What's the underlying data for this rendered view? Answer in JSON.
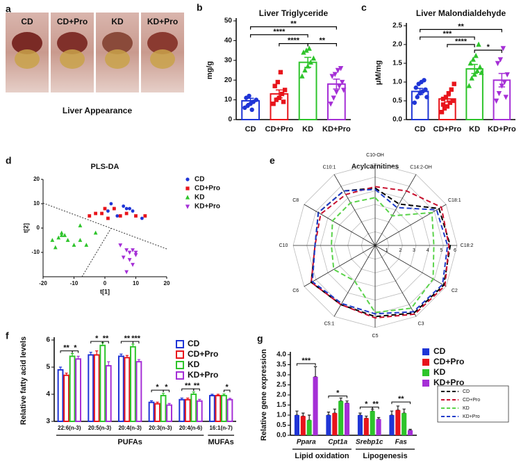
{
  "figure": {
    "panel_labels": [
      "a",
      "b",
      "c",
      "d",
      "e",
      "f",
      "g"
    ],
    "photo_labels": [
      "CD",
      "CD+Pro",
      "KD",
      "KD+Pro"
    ],
    "photo_caption": "Liver Appearance"
  },
  "chart_data": [
    {
      "type": "dot_bar",
      "title": "Liver Triglyceride",
      "y_label": "mg/g",
      "categories": [
        "CD",
        "CD+Pro",
        "KD",
        "KD+Pro"
      ],
      "colors": [
        "#1f35d6",
        "#e8141b",
        "#2ec42b",
        "#a52fd6"
      ],
      "markers": [
        "circle",
        "square",
        "triangle",
        "triangle-down"
      ],
      "values": [
        9.5,
        13,
        29,
        18
      ],
      "errors": [
        1.3,
        2,
        2.5,
        2.5
      ],
      "points": [
        [
          6,
          7,
          8,
          9,
          10,
          11,
          12,
          5
        ],
        [
          8,
          10,
          11,
          13,
          15,
          17,
          19,
          24,
          9
        ],
        [
          22,
          25,
          27,
          29,
          31,
          34,
          35,
          36
        ],
        [
          8,
          11,
          14,
          17,
          19,
          22,
          23,
          25,
          26,
          15
        ]
      ],
      "ylim": [
        0,
        50
      ],
      "yticks": [
        0,
        10,
        20,
        30,
        40,
        50
      ],
      "brackets": [
        {
          "text": "**",
          "from": "CD",
          "to": "KD+Pro",
          "y": 47
        },
        {
          "text": "****",
          "from": "CD",
          "to": "KD",
          "y": 43
        },
        {
          "text": "****",
          "from": "CD+Pro",
          "to": "KD",
          "y": 38.5
        },
        {
          "text": "**",
          "from": "KD",
          "to": "KD+Pro",
          "y": 38.5
        }
      ]
    },
    {
      "type": "dot_bar",
      "title": "Liver Malondialdehyde",
      "y_label": "μM/mg",
      "categories": [
        "CD",
        "CD+Pro",
        "KD",
        "KD+Pro"
      ],
      "colors": [
        "#1f35d6",
        "#e8141b",
        "#2ec42b",
        "#a52fd6"
      ],
      "markers": [
        "circle",
        "square",
        "triangle",
        "triangle-down"
      ],
      "values": [
        0.75,
        0.55,
        1.35,
        1.05
      ],
      "errors": [
        0.08,
        0.08,
        0.12,
        0.18
      ],
      "points": [
        [
          0.45,
          0.6,
          0.7,
          0.75,
          0.8,
          0.85,
          0.95,
          1.0,
          1.05,
          0.6
        ],
        [
          0.2,
          0.3,
          0.35,
          0.45,
          0.5,
          0.55,
          0.6,
          0.7,
          0.8,
          0.95,
          0.4
        ],
        [
          0.9,
          1.1,
          1.2,
          1.3,
          1.4,
          1.5,
          1.6,
          1.7,
          2.0,
          1.25
        ],
        [
          0.5,
          0.7,
          0.9,
          1.0,
          1.2,
          1.5,
          1.6,
          1.9,
          0.6
        ]
      ],
      "ylim": [
        0,
        2.5
      ],
      "yticks": [
        {
          "value": 0,
          "label": "0.0"
        },
        {
          "value": 0.5,
          "label": "0.5"
        },
        {
          "value": 1,
          "label": "1.0"
        },
        {
          "value": 1.5,
          "label": "1.5"
        },
        {
          "value": 2,
          "label": "2.0"
        },
        {
          "value": 2.5,
          "label": "2.5"
        }
      ],
      "brackets": [
        {
          "text": "**",
          "from": "CD",
          "to": "KD+Pro",
          "y": 2.4
        },
        {
          "text": "***",
          "from": "CD",
          "to": "KD",
          "y": 2.2
        },
        {
          "text": "****",
          "from": "CD+Pro",
          "to": "KD",
          "y": 2.0
        },
        {
          "text": "*",
          "from": "KD",
          "to": "KD+Pro",
          "y": 1.85
        }
      ]
    },
    {
      "type": "scatter",
      "title": "PLS-DA",
      "x_label": "t[1]",
      "y_label": "t[2]",
      "xlim": [
        -20,
        20
      ],
      "xticks": [
        -20,
        -10,
        0,
        10,
        20
      ],
      "ylim": [
        -20,
        20
      ],
      "yticks": [
        -10,
        0,
        10,
        20
      ],
      "legend": "right",
      "series": [
        {
          "name": "CD",
          "color": "#1f35d6",
          "marker": "circle",
          "x": [
            1,
            2,
            3,
            4,
            6,
            7,
            9,
            12,
            8
          ],
          "y": [
            7,
            10,
            8,
            5,
            9,
            8,
            7,
            4,
            8
          ]
        },
        {
          "name": "CD+Pro",
          "color": "#e8141b",
          "marker": "square",
          "x": [
            -5,
            -3,
            -1,
            1,
            0,
            5,
            7,
            10,
            13,
            3
          ],
          "y": [
            5,
            6,
            6,
            4,
            8,
            5,
            6,
            5,
            5,
            8
          ]
        },
        {
          "name": "KD",
          "color": "#2ec42b",
          "marker": "triangle",
          "x": [
            -17,
            -15,
            -14,
            -13,
            -12,
            -8,
            -16,
            -14,
            -8,
            -3,
            -6,
            -10
          ],
          "y": [
            -5,
            -4,
            -3,
            -3,
            -5,
            -5,
            -8,
            -2,
            1,
            -2,
            -7,
            -7
          ]
        },
        {
          "name": "KD+Pro",
          "color": "#a52fd6",
          "marker": "triangle-down",
          "x": [
            5,
            7,
            8,
            9,
            10,
            6,
            9,
            7,
            10,
            8
          ],
          "y": [
            -7,
            -9,
            -10,
            -9,
            -10,
            -12,
            -15,
            -18,
            -11,
            -13
          ]
        }
      ]
    },
    {
      "type": "radar",
      "title": "Acylcarnitines",
      "axes": [
        "C10-OH",
        "C14:2-OH",
        "C18:1",
        "C18:2",
        "C2",
        "C3",
        "C5",
        "C5:1",
        "C6",
        "C10",
        "C8",
        "C10:1"
      ],
      "rlim": [
        0,
        6
      ],
      "rticks": [
        1,
        2,
        3,
        4,
        5,
        6
      ],
      "legend": "bottom-right",
      "series": [
        {
          "name": "CD",
          "color": "#000000",
          "values": [
            4.2,
            3.5,
            5.4,
            5.5,
            5.8,
            5.7,
            5.2,
            5.0,
            5.4,
            4.4,
            4.8,
            4.6
          ]
        },
        {
          "name": "CD+Pro",
          "color": "#c8102e",
          "values": [
            4.3,
            4.6,
            5.6,
            5.4,
            5.9,
            5.8,
            5.3,
            5.0,
            5.4,
            4.4,
            4.6,
            4.3
          ]
        },
        {
          "name": "KD",
          "color": "#5ad34a",
          "values": [
            3.5,
            2.5,
            4.8,
            4.3,
            4.9,
            5.3,
            4.9,
            3.0,
            3.5,
            3.2,
            3.6,
            3.6
          ]
        },
        {
          "name": "KD+Pro",
          "color": "#1f3cc9",
          "values": [
            4.1,
            3.2,
            5.2,
            5.3,
            5.7,
            5.6,
            5.0,
            4.9,
            5.3,
            4.4,
            4.8,
            4.6
          ]
        }
      ]
    },
    {
      "type": "grouped_bar",
      "style": "hollow",
      "y_label": "Relative fatty acid levels",
      "categories": [
        "22:6(n-3)",
        "20:5(n-3)",
        "20:4(n-3)",
        "20:3(n-3)",
        "20:4(n-6)",
        "16:1(n-7)"
      ],
      "ylim": [
        3,
        6
      ],
      "yticks": [
        3,
        4,
        5,
        6
      ],
      "legend": "top-right",
      "groups": [
        {
          "label": "PUFAs",
          "from": "22:6(n-3)",
          "to": "20:4(n-6)"
        },
        {
          "label": "MUFAs",
          "from": "16:1(n-7)",
          "to": "16:1(n-7)"
        }
      ],
      "series": [
        {
          "name": "CD",
          "color": "#1f35d6",
          "values": [
            4.9,
            5.45,
            5.4,
            3.7,
            3.8,
            3.95
          ],
          "errors": [
            0.1,
            0.1,
            0.08,
            0.06,
            0.06,
            0.05
          ]
        },
        {
          "name": "CD+Pro",
          "color": "#e8141b",
          "values": [
            4.7,
            5.45,
            5.35,
            3.65,
            3.8,
            3.95
          ],
          "errors": [
            0.08,
            0.15,
            0.08,
            0.06,
            0.06,
            0.05
          ]
        },
        {
          "name": "KD",
          "color": "#2ec42b",
          "values": [
            5.4,
            5.8,
            5.75,
            3.95,
            4.0,
            3.95
          ],
          "errors": [
            0.1,
            0.1,
            0.1,
            0.08,
            0.08,
            0.06
          ]
        },
        {
          "name": "KD+Pro",
          "color": "#a52fd6",
          "values": [
            5.3,
            5.05,
            5.2,
            3.6,
            3.75,
            3.8
          ],
          "errors": [
            0.1,
            0.15,
            0.08,
            0.06,
            0.06,
            0.05
          ]
        }
      ],
      "brackets": [
        {
          "text": "**",
          "category": "22:6(n-3)",
          "from": "CD",
          "to": "KD",
          "y": 5.6
        },
        {
          "text": "*",
          "category": "22:6(n-3)",
          "from": "KD",
          "to": "KD+Pro",
          "y": 5.6
        },
        {
          "text": "*",
          "category": "20:5(n-3)",
          "from": "CD",
          "to": "KD",
          "y": 5.95
        },
        {
          "text": "**",
          "category": "20:5(n-3)",
          "from": "KD",
          "to": "KD+Pro",
          "y": 5.95
        },
        {
          "text": "**",
          "category": "20:4(n-3)",
          "from": "CD",
          "to": "KD",
          "y": 5.95
        },
        {
          "text": "***",
          "category": "20:4(n-3)",
          "from": "KD",
          "to": "KD+Pro",
          "y": 5.95
        },
        {
          "text": "*",
          "category": "20:3(n-3)",
          "from": "CD",
          "to": "KD",
          "y": 4.15
        },
        {
          "text": "*",
          "category": "20:3(n-3)",
          "from": "KD",
          "to": "KD+Pro",
          "y": 4.15
        },
        {
          "text": "**",
          "category": "20:4(n-6)",
          "from": "CD",
          "to": "KD",
          "y": 4.2
        },
        {
          "text": "**",
          "category": "20:4(n-6)",
          "from": "KD",
          "to": "KD+Pro",
          "y": 4.2
        },
        {
          "text": "*",
          "category": "16:1(n-7)",
          "from": "KD",
          "to": "KD+Pro",
          "y": 4.15
        }
      ]
    },
    {
      "type": "grouped_bar",
      "style": "filled",
      "y_label": "Relative gene expression",
      "categories": [
        "Ppara",
        "Cpt1a",
        "Srebp1c",
        "Fas"
      ],
      "ylim": [
        0,
        4
      ],
      "legend": "right",
      "yticks": [
        {
          "value": 0,
          "label": "0.0"
        },
        {
          "value": 0.5,
          "label": "0.5"
        },
        {
          "value": 1,
          "label": "1.0"
        },
        {
          "value": 1.5,
          "label": "1.5"
        },
        {
          "value": 2,
          "label": "2.0"
        },
        {
          "value": 2.5,
          "label": "2.5"
        },
        {
          "value": 3,
          "label": "3.0"
        },
        {
          "value": 3.5,
          "label": "3.5"
        },
        {
          "value": 4,
          "label": "4.0"
        }
      ],
      "groups": [
        {
          "label": "Lipid oxidation",
          "from": "Ppara",
          "to": "Cpt1a"
        },
        {
          "label": "Lipogenesis",
          "from": "Srebp1c",
          "to": "Fas"
        }
      ],
      "series": [
        {
          "name": "CD",
          "color": "#1f35d6",
          "values": [
            1.0,
            1.0,
            1.0,
            1.0
          ],
          "errors": [
            0.2,
            0.15,
            0.1,
            0.2
          ]
        },
        {
          "name": "CD+Pro",
          "color": "#e8141b",
          "values": [
            0.95,
            1.1,
            0.85,
            1.25
          ],
          "errors": [
            0.15,
            0.2,
            0.1,
            0.2
          ]
        },
        {
          "name": "KD",
          "color": "#2ec42b",
          "values": [
            0.75,
            1.7,
            1.2,
            1.1
          ],
          "errors": [
            0.25,
            0.15,
            0.1,
            0.2
          ]
        },
        {
          "name": "KD+Pro",
          "color": "#a52fd6",
          "values": [
            2.9,
            1.6,
            0.8,
            0.25
          ],
          "errors": [
            0.5,
            0.1,
            0.08,
            0.05
          ]
        }
      ],
      "brackets": [
        {
          "text": "***",
          "category": "Ppara",
          "from": "CD",
          "to": "KD+Pro",
          "y": 3.55
        },
        {
          "text": "*",
          "category": "Cpt1a",
          "from": "CD",
          "to": "KD+Pro",
          "y": 1.95
        },
        {
          "text": "*",
          "category": "Srebp1c",
          "from": "CD",
          "to": "KD",
          "y": 1.4
        },
        {
          "text": "**",
          "category": "Srebp1c",
          "from": "KD",
          "to": "KD+Pro",
          "y": 1.4
        },
        {
          "text": "**",
          "category": "Fas",
          "from": "CD",
          "to": "KD+Pro",
          "y": 1.65
        }
      ]
    }
  ]
}
